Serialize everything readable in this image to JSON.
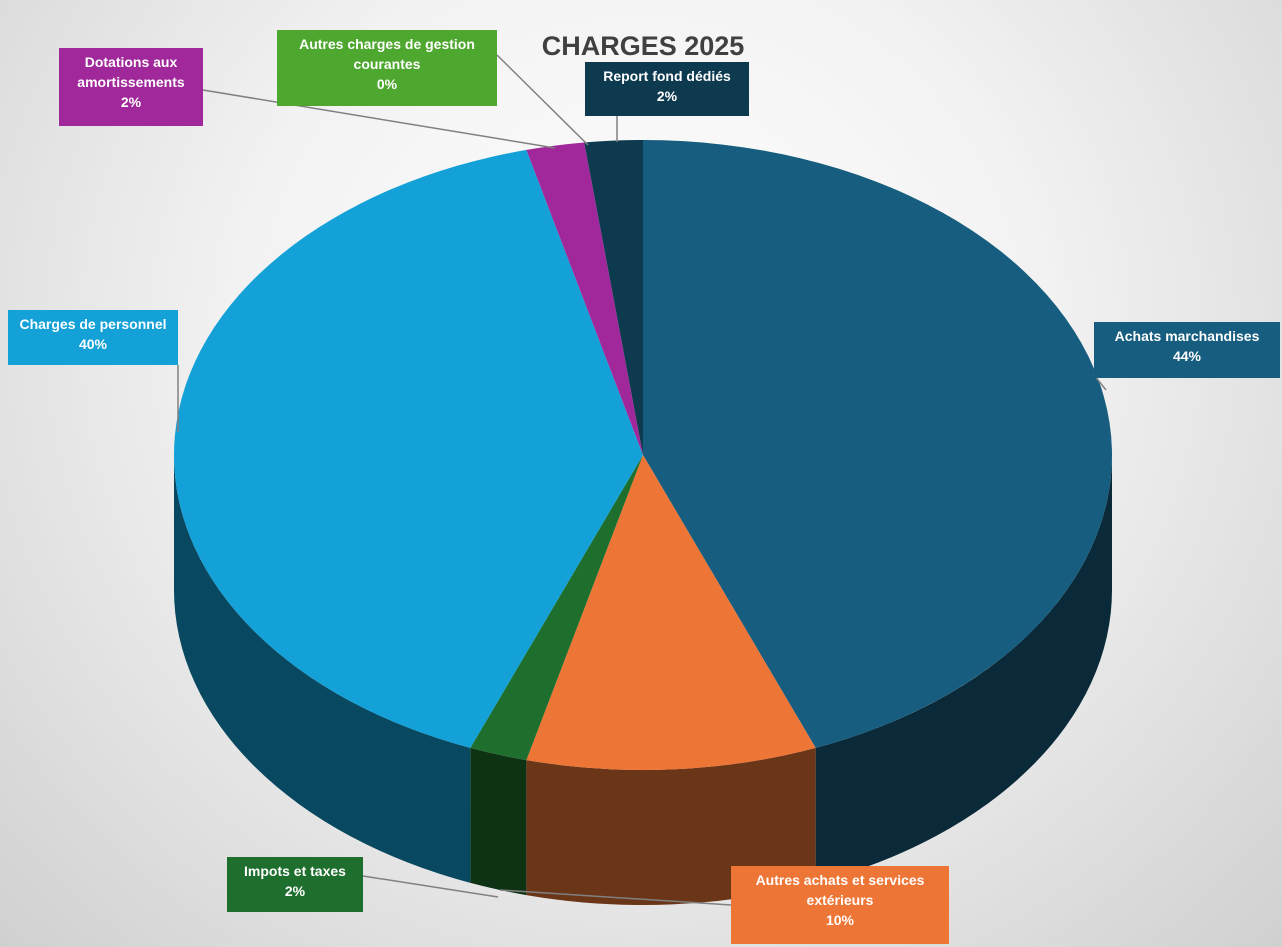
{
  "chart_data": {
    "type": "pie",
    "title": "CHARGES 2025",
    "categories": [
      "Achats marchandises",
      "Autres achats et  services extérieurs",
      "Impots et taxes",
      "Charges de personnel",
      "Dotations aux amortissements",
      "Autres charges de gestion courantes",
      "Report fond dédiés"
    ],
    "values": [
      44,
      10,
      2,
      40,
      2,
      0,
      2
    ],
    "value_labels": [
      "44%",
      "10%",
      "2%",
      "40%",
      "2%",
      "0%",
      "2%"
    ],
    "colors": [
      "#165d7f",
      "#ed7535",
      "#1e6e2d",
      "#13a1d8",
      "#a0289a",
      "#4ea72e",
      "#0e3a50"
    ]
  }
}
